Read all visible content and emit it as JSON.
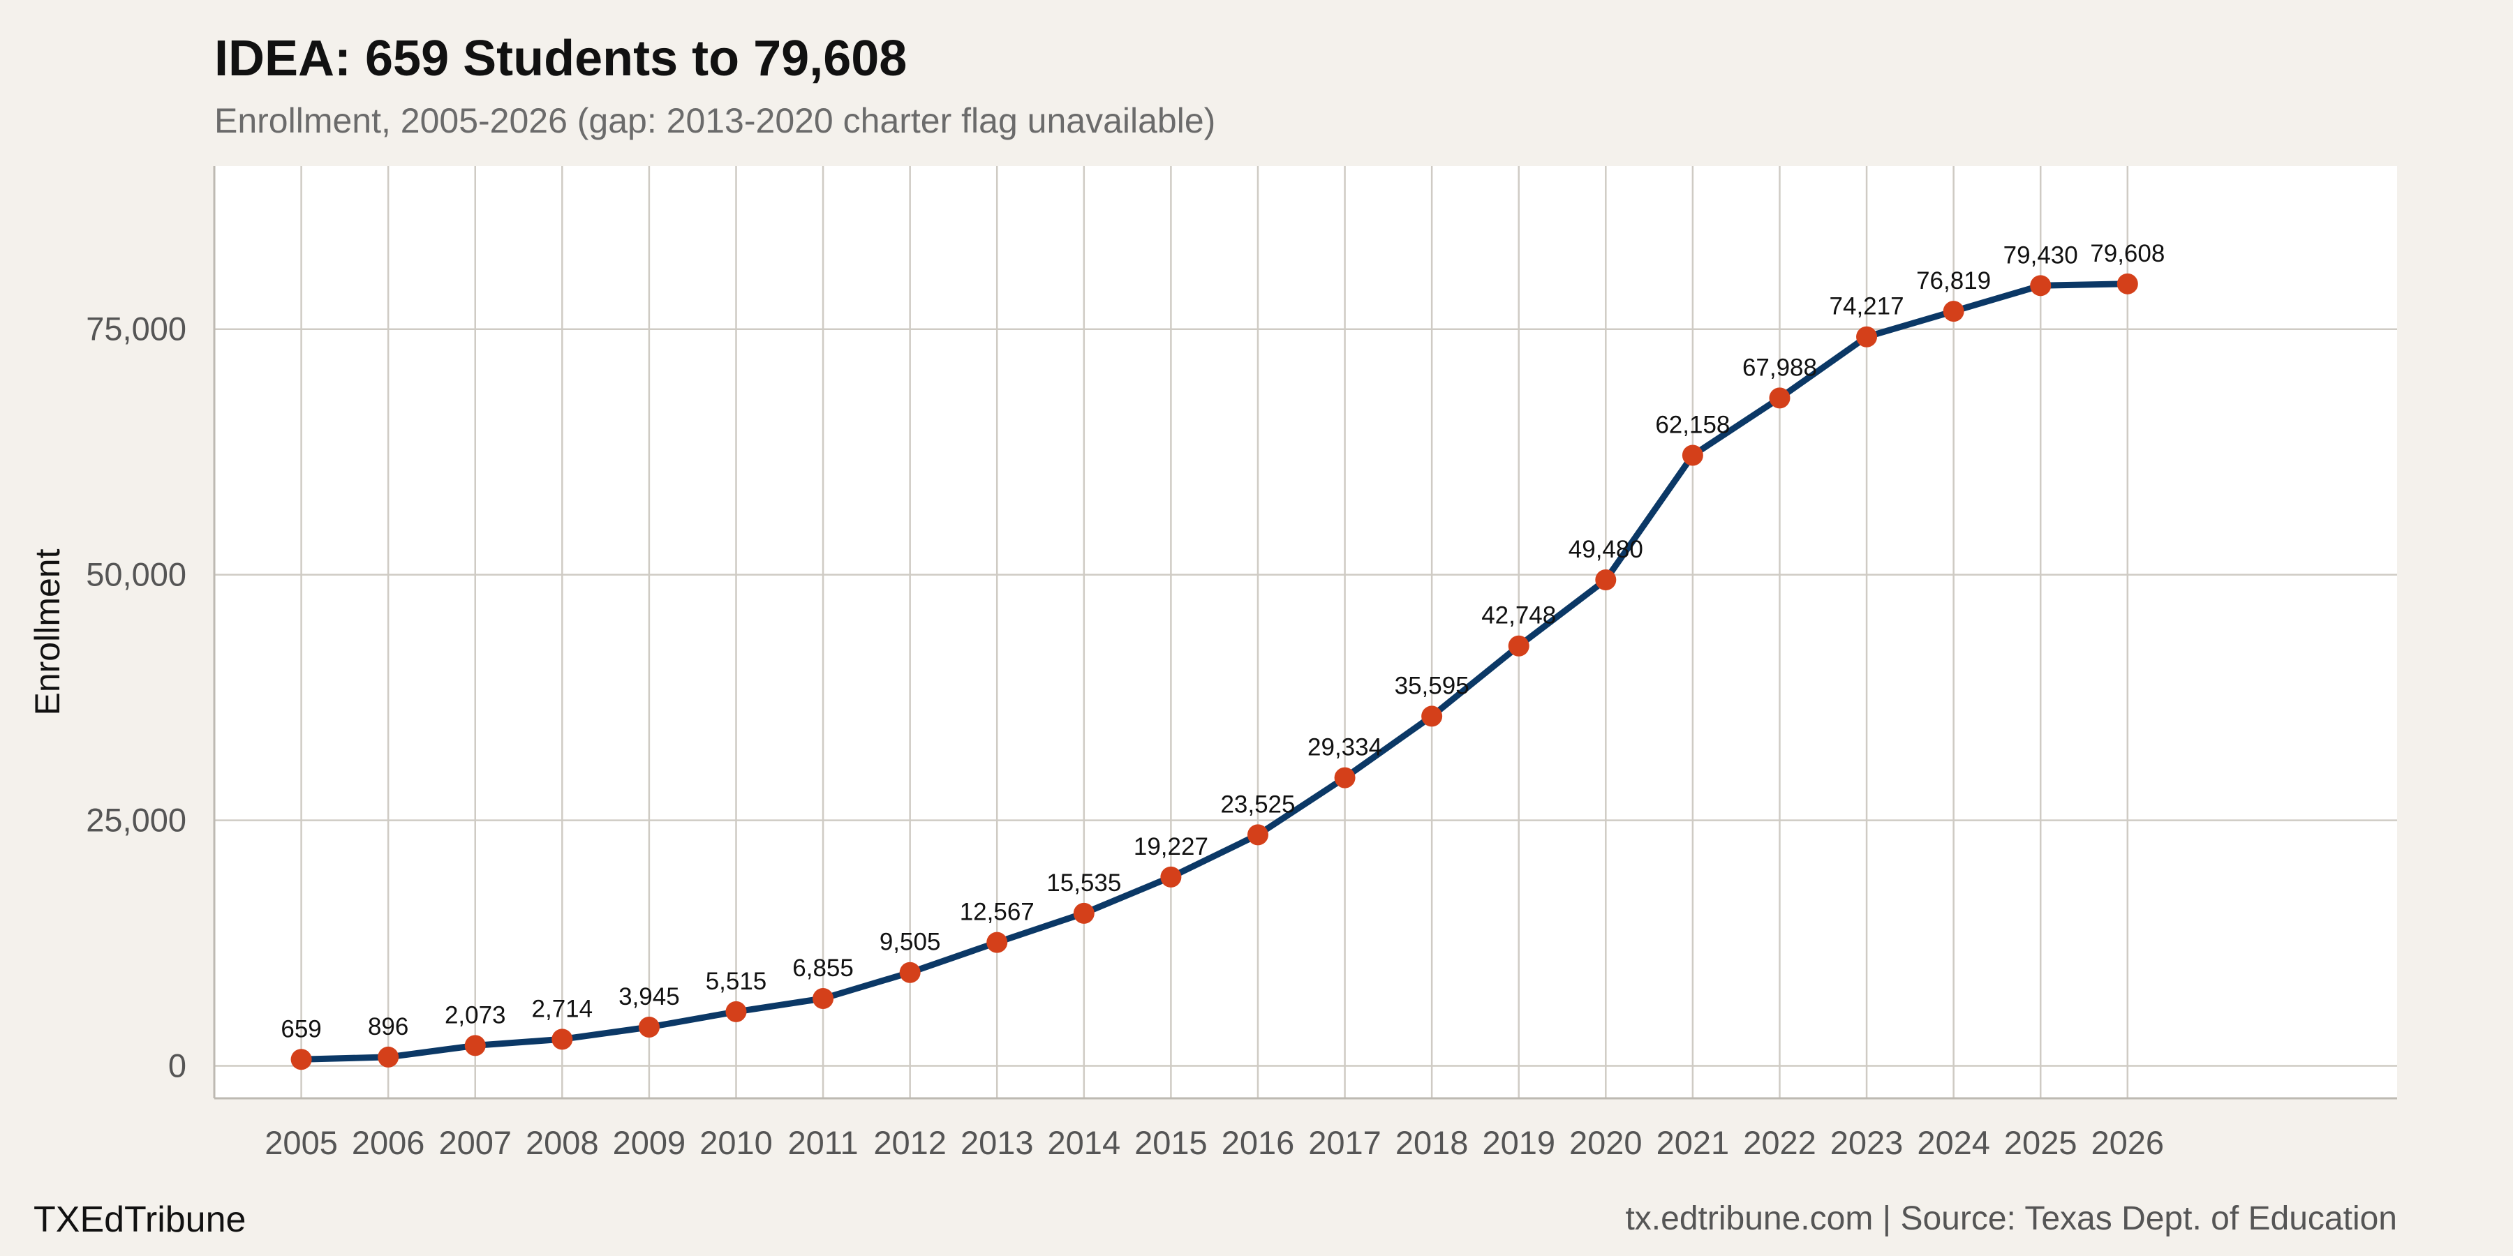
{
  "title": "IDEA: 659 Students to 79,608",
  "subtitle": "Enrollment, 2005-2026 (gap: 2013-2020 charter flag unavailable)",
  "footer": {
    "brand": "TXEdTribune",
    "source": "tx.edtribune.com | Source: Texas Dept. of Education"
  },
  "colors": {
    "background": "#f4f1ec",
    "panel": "#ffffff",
    "grid": "#cfcbc4",
    "line": "#0b3866",
    "point": "#d4401a"
  },
  "chart_data": {
    "type": "line",
    "title": "IDEA: 659 Students to 79,608",
    "subtitle": "Enrollment, 2005-2026 (gap: 2013-2020 charter flag unavailable)",
    "xlabel": "",
    "ylabel": "Enrollment",
    "x": [
      2005,
      2006,
      2007,
      2008,
      2009,
      2010,
      2011,
      2012,
      2013,
      2014,
      2015,
      2016,
      2017,
      2018,
      2019,
      2020,
      2021,
      2022,
      2023,
      2024,
      2025,
      2026
    ],
    "series": [
      {
        "values": [
          659,
          896,
          2073,
          2714,
          3945,
          5515,
          6855,
          9505,
          12567,
          15535,
          19227,
          23525,
          29334,
          35595,
          42748,
          49480,
          62158,
          67988,
          74217,
          76819,
          79430,
          79608
        ],
        "labels": [
          "659",
          "896",
          "2,073",
          "2,714",
          "3,945",
          "5,515",
          "6,855",
          "9,505",
          "12,567",
          "15,535",
          "19,227",
          "23,525",
          "29,334",
          "35,595",
          "42,748",
          "49,480",
          "62,158",
          "67,988",
          "74,217",
          "76,819",
          "79,430",
          "79,608"
        ]
      }
    ],
    "xlim": [
      2004,
      2029.1
    ],
    "ylim": [
      -3300,
      91600
    ],
    "yticks": [
      0,
      25000,
      50000,
      75000
    ],
    "ytick_labels": [
      "0",
      "25,000",
      "50,000",
      "75,000"
    ],
    "xticks": [
      2005,
      2006,
      2007,
      2008,
      2009,
      2010,
      2011,
      2012,
      2013,
      2014,
      2015,
      2016,
      2017,
      2018,
      2019,
      2020,
      2021,
      2022,
      2023,
      2024,
      2025,
      2026
    ],
    "xtick_labels": [
      "2005",
      "2006",
      "2007",
      "2008",
      "2009",
      "2010",
      "2011",
      "2012",
      "2013",
      "2014",
      "2015",
      "2016",
      "2017",
      "2018",
      "2019",
      "2020",
      "2021",
      "2022",
      "2023",
      "2024",
      "2025",
      "2026"
    ],
    "grid": true,
    "legend": "none"
  }
}
